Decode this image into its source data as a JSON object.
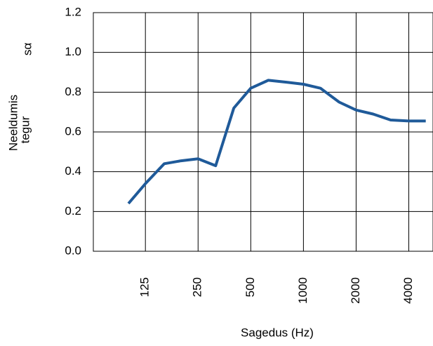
{
  "chart_data": {
    "type": "line",
    "x_label": "Sagedus (Hz)",
    "y_label": [
      "Neeldumis",
      "tegur"
    ],
    "y_label_symbol": "sα",
    "x": [
      100,
      125,
      160,
      200,
      250,
      315,
      400,
      500,
      630,
      800,
      1000,
      1250,
      1600,
      2000,
      2500,
      3150,
      4000,
      5000
    ],
    "series": [
      {
        "color": "#1f5a99",
        "values": [
          0.24,
          0.34,
          0.44,
          0.455,
          0.465,
          0.43,
          0.72,
          0.82,
          0.86,
          0.85,
          0.84,
          0.82,
          0.75,
          0.71,
          0.69,
          0.66,
          0.655,
          0.655
        ]
      }
    ],
    "xlim": [
      63,
      5500
    ],
    "xlog": true,
    "xticks": [
      125,
      250,
      500,
      1000,
      2000,
      4000
    ],
    "ylim": [
      0,
      1.2
    ],
    "yticks": [
      {
        "value": 0,
        "label": "0.0"
      },
      0.2,
      0.4,
      0.6,
      0.8,
      {
        "value": 1,
        "label": "1.0"
      },
      1.2
    ],
    "grid": true
  }
}
